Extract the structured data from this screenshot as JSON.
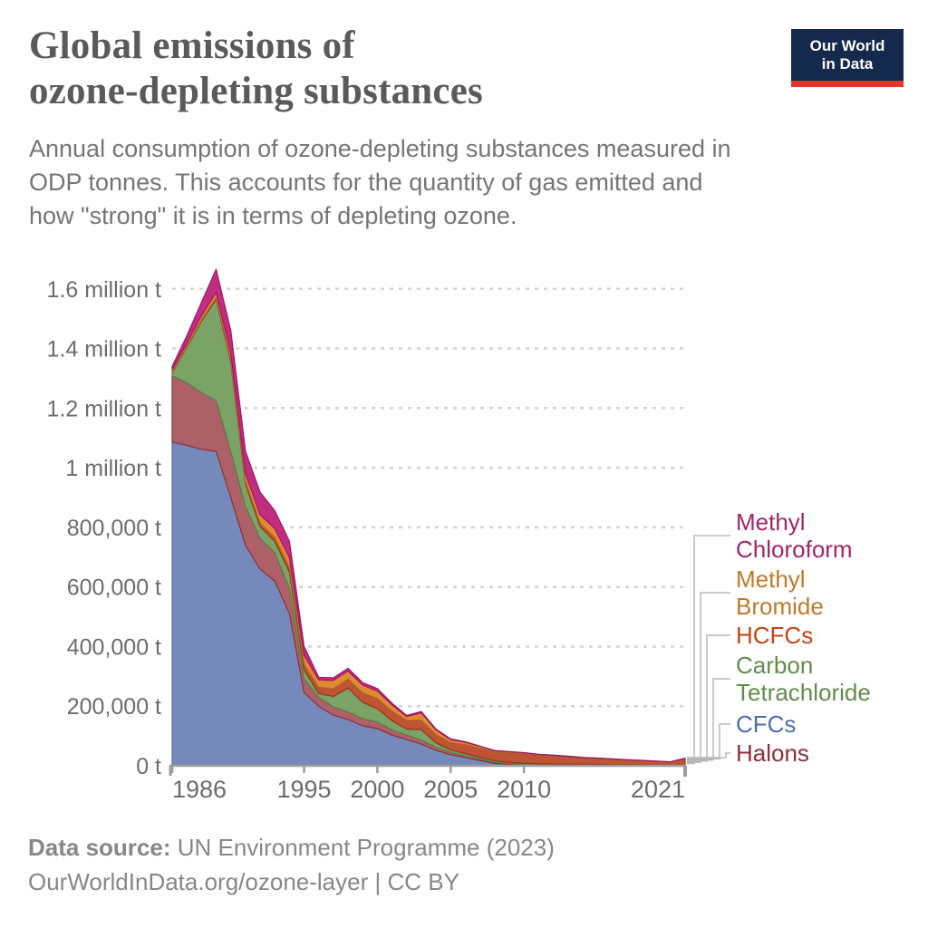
{
  "header": {
    "title_line1": "Global emissions of",
    "title_line2": "ozone-depleting substances",
    "subtitle_lines": [
      "Annual consumption of ozone-depleting substances measured in",
      "ODP tonnes. This accounts for the quantity of gas emitted and",
      "how \"strong\" it is in terms of depleting ozone."
    ]
  },
  "logo": {
    "line1": "Our World",
    "line2": "in Data",
    "bg_color": "#15294d",
    "accent_color": "#e0362c"
  },
  "footer": {
    "source_label": "Data source:",
    "source_text": " UN Environment Programme (2023)",
    "line2": "OurWorldInData.org/ozone-layer  | CC BY"
  },
  "chart_data": {
    "type": "area",
    "stacked": true,
    "title": "Global emissions of ozone-depleting substances",
    "ylabel": "ODP tonnes",
    "ylim": [
      0,
      1700000
    ],
    "grid": "dashed-horizontal",
    "legend_position": "right-leader-lines",
    "x": [
      1986,
      1987,
      1988,
      1989,
      1990,
      1991,
      1992,
      1993,
      1994,
      1995,
      1996,
      1997,
      1998,
      1999,
      2000,
      2001,
      2002,
      2003,
      2004,
      2005,
      2006,
      2007,
      2008,
      2009,
      2010,
      2011,
      2012,
      2013,
      2014,
      2015,
      2016,
      2017,
      2018,
      2019,
      2020,
      2021
    ],
    "x_ticks": [
      1986,
      1995,
      2000,
      2005,
      2010,
      2021
    ],
    "y_ticks": [
      {
        "value": 0,
        "label": "0 t"
      },
      {
        "value": 200000,
        "label": "200,000 t"
      },
      {
        "value": 400000,
        "label": "400,000 t"
      },
      {
        "value": 600000,
        "label": "600,000 t"
      },
      {
        "value": 800000,
        "label": "800,000 t"
      },
      {
        "value": 1000000,
        "label": "1 million t"
      },
      {
        "value": 1200000,
        "label": "1.2 million t"
      },
      {
        "value": 1400000,
        "label": "1.4 million t"
      },
      {
        "value": 1600000,
        "label": "1.6 million t"
      }
    ],
    "series": [
      {
        "name": "CFCs",
        "fill": "#7589bb",
        "stroke": "#4c6fa8",
        "values": [
          1086000,
          1075000,
          1062000,
          1055000,
          900000,
          740000,
          660000,
          620000,
          510000,
          246000,
          200000,
          170000,
          155000,
          134000,
          125000,
          103000,
          88000,
          73000,
          52000,
          37000,
          28000,
          18000,
          8000,
          5000,
          2000,
          1000,
          800,
          700,
          600,
          500,
          500,
          400,
          400,
          300,
          300,
          300
        ]
      },
      {
        "name": "Halons",
        "fill": "#ae6069",
        "stroke": "#8c3039",
        "values": [
          222000,
          210000,
          190000,
          170000,
          155000,
          130000,
          103000,
          95000,
          85000,
          46000,
          30000,
          28000,
          26000,
          24000,
          22000,
          18000,
          15000,
          13000,
          10000,
          8000,
          6000,
          5000,
          3500,
          3000,
          2500,
          2000,
          2000,
          1800,
          1600,
          1500,
          1400,
          1300,
          1200,
          1100,
          1000,
          1000
        ]
      },
      {
        "name": "Carbon Tetrachloride",
        "fill": "#7ba368",
        "stroke": "#578145",
        "values": [
          12000,
          120000,
          240000,
          340000,
          300000,
          75000,
          40000,
          38000,
          55000,
          30000,
          12000,
          35000,
          80000,
          55000,
          45000,
          30000,
          20000,
          35000,
          15000,
          8000,
          7000,
          6000,
          5000,
          4000,
          4000,
          3500,
          3000,
          3000,
          2800,
          2500,
          2200,
          2000,
          1800,
          1600,
          1400,
          1500
        ]
      },
      {
        "name": "HCFCs",
        "fill": "#be5434",
        "stroke": "#98330f",
        "values": [
          2000,
          3000,
          4000,
          5000,
          7000,
          9000,
          11000,
          13000,
          16000,
          19000,
          22000,
          26000,
          30000,
          32000,
          34000,
          33000,
          30000,
          32000,
          28000,
          25000,
          30000,
          30000,
          30000,
          32000,
          33000,
          30000,
          28000,
          25000,
          22000,
          20000,
          18000,
          16000,
          14000,
          12000,
          10000,
          22000
        ]
      },
      {
        "name": "Methyl Bromide",
        "fill": "#e08b33",
        "stroke": "#b06e1f",
        "values": [
          8000,
          10000,
          14000,
          18000,
          22000,
          26000,
          28000,
          30000,
          32000,
          30000,
          24000,
          28000,
          27000,
          26000,
          25000,
          20000,
          12000,
          25000,
          15000,
          10000,
          8000,
          6000,
          4000,
          3000,
          2000,
          1500,
          1500,
          1200,
          1000,
          1000,
          900,
          800,
          700,
          600,
          500,
          500
        ]
      },
      {
        "name": "Methyl Chloroform",
        "fill": "#c12e7f",
        "stroke": "#a2146b",
        "values": [
          10000,
          25000,
          45000,
          78000,
          76000,
          75000,
          76000,
          60000,
          55000,
          30000,
          9000,
          8000,
          9000,
          8000,
          8000,
          6000,
          4000,
          4000,
          3000,
          2000,
          1500,
          1000,
          1000,
          800,
          600,
          500,
          500,
          400,
          400,
          300,
          300,
          300,
          200,
          200,
          200,
          200
        ]
      }
    ],
    "legend": [
      {
        "lines": [
          "Methyl",
          "Chloroform"
        ],
        "color": "#a2256b",
        "series": "Methyl Chloroform"
      },
      {
        "lines": [
          "Methyl",
          "Bromide"
        ],
        "color": "#be7a28",
        "series": "Methyl Bromide"
      },
      {
        "lines": [
          "HCFCs"
        ],
        "color": "#c34517",
        "series": "HCFCs"
      },
      {
        "lines": [
          "Carbon",
          "Tetrachloride"
        ],
        "color": "#628c4d",
        "series": "Carbon Tetrachloride"
      },
      {
        "lines": [
          "CFCs"
        ],
        "color": "#4c6fa8",
        "series": "CFCs"
      },
      {
        "lines": [
          "Halons"
        ],
        "color": "#8c2f39",
        "series": "Halons"
      }
    ]
  }
}
